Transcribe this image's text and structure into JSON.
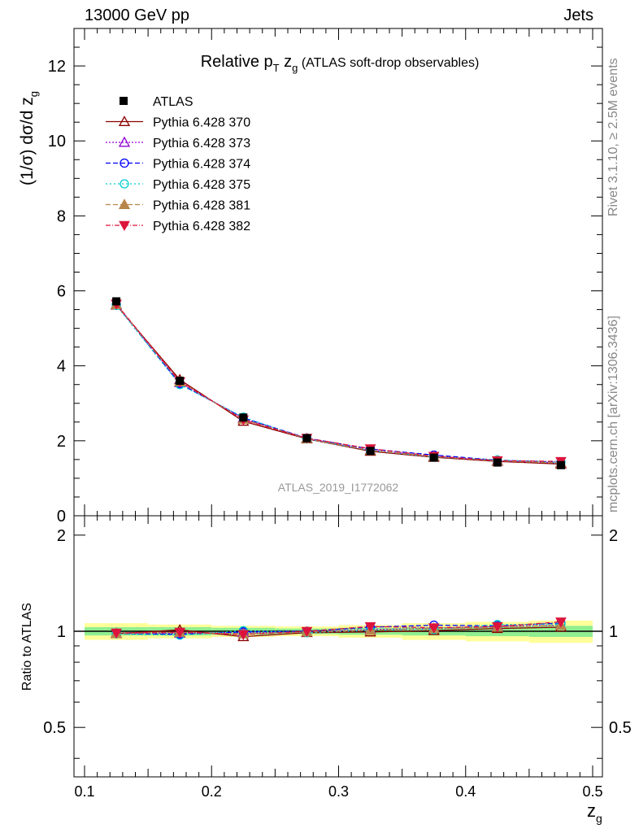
{
  "header": {
    "left": "13000 GeV pp",
    "right": "Jets"
  },
  "side": {
    "rivet": "Rivet 3.1.10, ≥ 2.5M events",
    "mcplots": "mcplots.cern.ch [arXiv:1306.3436]"
  },
  "chart_data": {
    "type": "line",
    "title": "Relative p_T z_g (ATLAS soft-drop observables)",
    "title_parts": {
      "main": "Relative p",
      "sub_T": "T",
      "z": "z",
      "sub_g": "g",
      "suffix": "(ATLAS soft-drop observables)"
    },
    "watermark": "ATLAS_2019_I1772062",
    "xlabel": "z_g",
    "xlabel_parts": {
      "z": "z",
      "sub": "g"
    },
    "ylabel": "(1/σ) dσ/d z_g",
    "ylabel_parts": {
      "main": "(1/σ) dσ/d z",
      "sub": "g"
    },
    "ratio_ylabel": "Ratio to ATLAS",
    "xlim": [
      0.1,
      0.5
    ],
    "ylim": [
      0,
      13
    ],
    "ratio_ylim": [
      0.35,
      2.3
    ],
    "xticks": [
      "0.1",
      "0.2",
      "0.3",
      "0.4",
      "0.5"
    ],
    "yticks": [
      "0",
      "2",
      "4",
      "6",
      "8",
      "10",
      "12"
    ],
    "ratio_yticks": [
      "0.5",
      "1",
      "2"
    ],
    "x": [
      0.125,
      0.175,
      0.225,
      0.275,
      0.325,
      0.375,
      0.425,
      0.475
    ],
    "data": {
      "name": "ATLAS",
      "values": [
        5.72,
        3.6,
        2.62,
        2.07,
        1.73,
        1.55,
        1.42,
        1.35
      ],
      "band_inner": [
        0.03,
        0.03,
        0.025,
        0.02,
        0.025,
        0.03,
        0.035,
        0.04
      ],
      "band_outer": [
        0.06,
        0.05,
        0.04,
        0.035,
        0.045,
        0.06,
        0.07,
        0.08
      ]
    },
    "series": [
      {
        "name": "Pythia 6.428 370",
        "color": "#8b0000",
        "dash": "",
        "marker": "triangle-open",
        "values": [
          5.62,
          3.63,
          2.52,
          2.05,
          1.72,
          1.56,
          1.45,
          1.38
        ],
        "ratio": [
          0.983,
          1.01,
          0.962,
          0.99,
          0.995,
          1.005,
          1.02,
          1.03
        ]
      },
      {
        "name": "Pythia 6.428 373",
        "color": "#9400d3",
        "dash": "2,2",
        "marker": "triangle-open",
        "values": [
          5.64,
          3.55,
          2.6,
          2.06,
          1.75,
          1.58,
          1.47,
          1.41
        ],
        "ratio": [
          0.986,
          0.986,
          0.992,
          0.995,
          1.012,
          1.02,
          1.035,
          1.045
        ]
      },
      {
        "name": "Pythia 6.428 374",
        "color": "#0000ff",
        "dash": "6,3",
        "marker": "circle-open",
        "values": [
          5.63,
          3.52,
          2.61,
          2.07,
          1.78,
          1.62,
          1.48,
          1.43
        ],
        "ratio": [
          0.984,
          0.978,
          0.996,
          1.0,
          1.03,
          1.045,
          1.04,
          1.06
        ]
      },
      {
        "name": "Pythia 6.428 375",
        "color": "#00ced1",
        "dash": "2,3",
        "marker": "circle-open",
        "values": [
          5.61,
          3.5,
          2.63,
          2.05,
          1.74,
          1.57,
          1.49,
          1.42
        ],
        "ratio": [
          0.981,
          0.972,
          1.004,
          0.99,
          1.006,
          1.013,
          1.05,
          1.052
        ]
      },
      {
        "name": "Pythia 6.428 381",
        "color": "#b8864b",
        "dash": "6,3",
        "marker": "triangle-filled",
        "values": [
          5.63,
          3.57,
          2.57,
          2.06,
          1.74,
          1.58,
          1.46,
          1.41
        ],
        "ratio": [
          0.984,
          0.992,
          0.981,
          0.995,
          1.006,
          1.02,
          1.03,
          1.044
        ]
      },
      {
        "name": "Pythia 6.428 382",
        "color": "#dc143c",
        "dash": "6,2,1,2",
        "marker": "triangle-down-filled",
        "values": [
          5.65,
          3.58,
          2.56,
          2.07,
          1.79,
          1.59,
          1.47,
          1.45
        ],
        "ratio": [
          0.988,
          0.994,
          0.977,
          1.0,
          1.035,
          1.026,
          1.035,
          1.07
        ]
      }
    ],
    "colors": {
      "band_inner": "#90ee90",
      "band_outer": "#ffff99",
      "data": "#000000"
    },
    "legend_placement": "top-left",
    "grid": false
  }
}
